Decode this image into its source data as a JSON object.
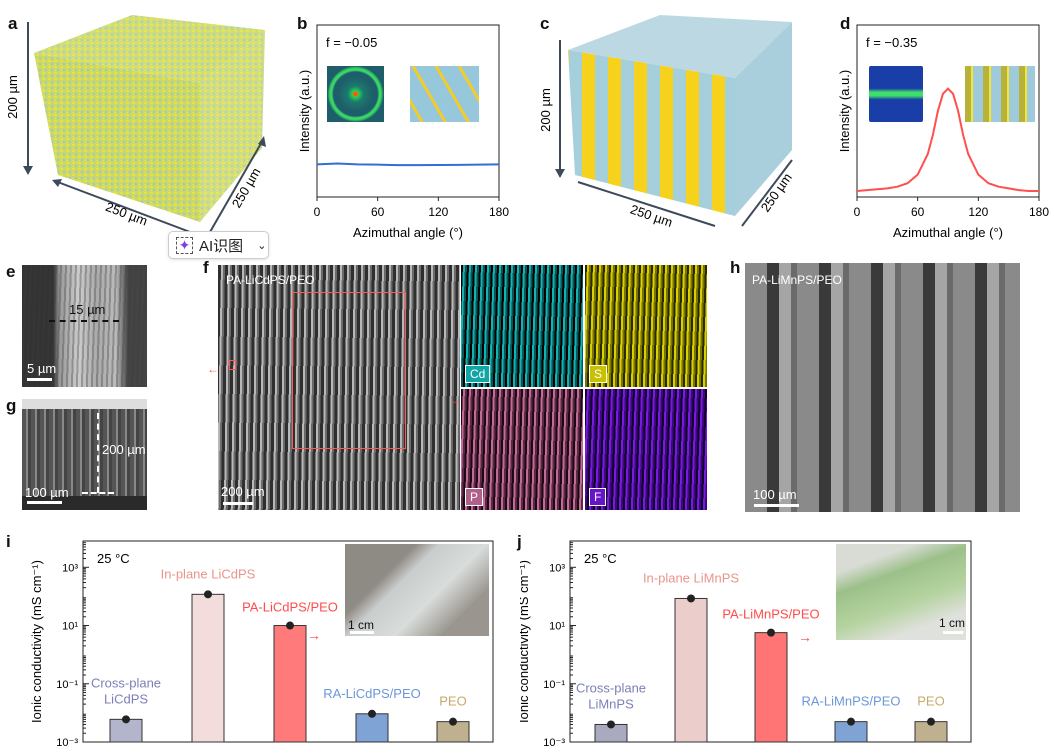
{
  "panels": {
    "a": "a",
    "b": "b",
    "c": "c",
    "d": "d",
    "e": "e",
    "f": "f",
    "g": "g",
    "h": "h",
    "i": "i",
    "j": "j"
  },
  "cube_a": {
    "height_label": "200 µm",
    "width_label": "250 µm",
    "depth_label": "250 µm"
  },
  "cube_c": {
    "height_label": "200 µm",
    "width_label": "250 µm",
    "depth_label": "250 µm"
  },
  "ai_button": {
    "label": "AI识图",
    "icon": "sparkle-scan-icon",
    "chevron": "chevron-down-icon"
  },
  "sem": {
    "e": {
      "dimension": "15 µm",
      "scale": "5 µm"
    },
    "f": {
      "title": "PA-LiCdPS/PEO",
      "scale": "200  µm",
      "elements": [
        "Cd",
        "S",
        "P",
        "F"
      ],
      "element_colors": [
        "#12a5a5",
        "#c8c000",
        "#b0608a",
        "#6a14c8"
      ]
    },
    "g": {
      "dimension": "200 µm",
      "scale": "100 µm"
    },
    "h": {
      "title": "PA-LiMnPS/PEO",
      "scale": "100 µm"
    }
  },
  "insets": {
    "i_scale": "1 cm",
    "j_scale": "1 cm"
  },
  "chart_data": [
    {
      "id": "b",
      "type": "line",
      "annotation": "f = −0.05",
      "xlabel": "Azimuthal angle (°)",
      "ylabel": "Intensity (a.u.)",
      "xlim": [
        0,
        180
      ],
      "ylim": [
        0,
        1
      ],
      "xticks": [
        "0",
        "60",
        "120",
        "180"
      ],
      "color": "#2f6fd6",
      "x": [
        0,
        20,
        40,
        60,
        80,
        100,
        120,
        140,
        160,
        180
      ],
      "y": [
        0.19,
        0.195,
        0.19,
        0.188,
        0.185,
        0.185,
        0.186,
        0.187,
        0.188,
        0.19
      ]
    },
    {
      "id": "d",
      "type": "line",
      "annotation": "f = −0.35",
      "xlabel": "Azimuthal angle (°)",
      "ylabel": "Intensity (a.u.)",
      "xlim": [
        0,
        180
      ],
      "ylim": [
        0,
        1
      ],
      "xticks": [
        "0",
        "60",
        "120",
        "180"
      ],
      "color": "#ff4f4f",
      "x": [
        0,
        10,
        20,
        30,
        40,
        50,
        60,
        70,
        75,
        80,
        85,
        90,
        95,
        100,
        105,
        110,
        120,
        130,
        140,
        150,
        160,
        170,
        180
      ],
      "y": [
        0.035,
        0.04,
        0.045,
        0.05,
        0.06,
        0.08,
        0.13,
        0.25,
        0.36,
        0.5,
        0.6,
        0.63,
        0.6,
        0.5,
        0.36,
        0.25,
        0.13,
        0.08,
        0.06,
        0.05,
        0.04,
        0.035,
        0.035
      ]
    },
    {
      "id": "i",
      "type": "bar",
      "scale": "log",
      "annotation": "25 °C",
      "ylabel": "Ionic conductivity (mS cm⁻¹)",
      "ylim": [
        0.001,
        8000
      ],
      "yticks": [
        "10³",
        "10¹",
        "10⁻¹",
        "10⁻³"
      ],
      "categories": [
        "Cross-plane LiCdPS",
        "In-plane LiCdPS",
        "PA-LiCdPS/PEO",
        "RA-LiCdPS/PEO",
        "PEO"
      ],
      "label_lines": [
        [
          "Cross-plane",
          "LiCdPS"
        ],
        [
          "In-plane LiCdPS"
        ],
        [
          "PA-LiCdPS/PEO"
        ],
        [
          "RA-LiCdPS/PEO"
        ],
        [
          "PEO"
        ]
      ],
      "values": [
        0.006,
        118,
        10,
        0.0093,
        0.005
      ],
      "colors": [
        "#b3b5cc",
        "#f2dcdc",
        "#ff7b7b",
        "#7fa3d4",
        "#bfb190"
      ],
      "label_colors": [
        "#7b80b5",
        "#e8958a",
        "#ff4b4b",
        "#6a97d8",
        "#c8a86a"
      ]
    },
    {
      "id": "j",
      "type": "bar",
      "scale": "log",
      "annotation": "25 °C",
      "ylabel": "Ionic conductivity (mS cm⁻¹)",
      "ylim": [
        0.001,
        8000
      ],
      "yticks": [
        "10³",
        "10¹",
        "10⁻¹",
        "10⁻³"
      ],
      "categories": [
        "Cross-plane LiMnPS",
        "In-plane LiMnPS",
        "PA-LiMnPS/PEO",
        "RA-LiMnPS/PEO",
        "PEO"
      ],
      "label_lines": [
        [
          "Cross-plane",
          "LiMnPS"
        ],
        [
          "In-plane LiMnPS"
        ],
        [
          "PA-LiMnPS/PEO"
        ],
        [
          "RA-LiMnPS/PEO"
        ],
        [
          "PEO"
        ]
      ],
      "values": [
        0.004,
        85,
        5.7,
        0.005,
        0.005
      ],
      "colors": [
        "#a9a9c0",
        "#ebcdcb",
        "#ff7474",
        "#7fa3d4",
        "#bfb190"
      ],
      "label_colors": [
        "#7b80b5",
        "#e8958a",
        "#ff4b4b",
        "#6a97d8",
        "#c8a86a"
      ]
    }
  ]
}
